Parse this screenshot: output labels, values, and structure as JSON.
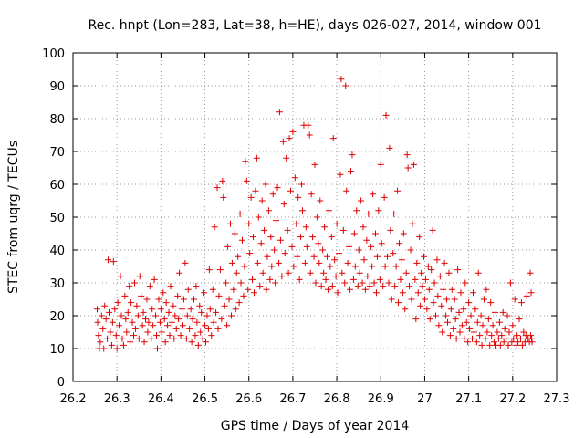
{
  "chart_data": {
    "type": "scatter",
    "title": "Rec. hnpt (Lon=283, Lat=38, h=HE), days 026-027, 2014, window 001",
    "xlabel": "GPS time / Days of year 2014",
    "ylabel": "STEC from uqrg / TECUs",
    "xlim": [
      26.2,
      27.3
    ],
    "ylim": [
      0,
      100
    ],
    "xticks": [
      26.2,
      26.3,
      26.4,
      26.5,
      26.6,
      26.7,
      26.8,
      26.9,
      27.0,
      27.1,
      27.2,
      27.3
    ],
    "xtick_labels": [
      "26.2",
      "26.3",
      "26.4",
      "26.5",
      "26.6",
      "26.7",
      "26.8",
      "26.9",
      "27",
      "27.1",
      "27.2",
      "27.3"
    ],
    "yticks": [
      0,
      10,
      20,
      30,
      40,
      50,
      60,
      70,
      80,
      90,
      100
    ],
    "ytick_labels": [
      "0",
      "10",
      "20",
      "30",
      "40",
      "50",
      "60",
      "70",
      "80",
      "90",
      "100"
    ],
    "grid": true,
    "marker": "+",
    "color": "#e00000",
    "points": [
      [
        26.255,
        22
      ],
      [
        26.256,
        18
      ],
      [
        26.258,
        14
      ],
      [
        26.26,
        10
      ],
      [
        26.262,
        12
      ],
      [
        26.265,
        20
      ],
      [
        26.268,
        16
      ],
      [
        26.27,
        10
      ],
      [
        26.272,
        23
      ],
      [
        26.275,
        19
      ],
      [
        26.278,
        13
      ],
      [
        26.28,
        37
      ],
      [
        26.282,
        21
      ],
      [
        26.285,
        15
      ],
      [
        26.288,
        11
      ],
      [
        26.29,
        18
      ],
      [
        26.292,
        36.5
      ],
      [
        26.295,
        22
      ],
      [
        26.298,
        14
      ],
      [
        26.3,
        10
      ],
      [
        26.302,
        24
      ],
      [
        26.305,
        17
      ],
      [
        26.308,
        32
      ],
      [
        26.31,
        20
      ],
      [
        26.312,
        13
      ],
      [
        26.315,
        11
      ],
      [
        26.318,
        26
      ],
      [
        26.32,
        19
      ],
      [
        26.322,
        15
      ],
      [
        26.325,
        21
      ],
      [
        26.328,
        29
      ],
      [
        26.33,
        12
      ],
      [
        26.332,
        24
      ],
      [
        26.335,
        18
      ],
      [
        26.338,
        14
      ],
      [
        26.34,
        30
      ],
      [
        26.342,
        16
      ],
      [
        26.345,
        23
      ],
      [
        26.348,
        20
      ],
      [
        26.35,
        13
      ],
      [
        26.352,
        32
      ],
      [
        26.355,
        26
      ],
      [
        26.358,
        17
      ],
      [
        26.36,
        21
      ],
      [
        26.362,
        12
      ],
      [
        26.365,
        19
      ],
      [
        26.368,
        25
      ],
      [
        26.37,
        15
      ],
      [
        26.372,
        18
      ],
      [
        26.375,
        29
      ],
      [
        26.378,
        13
      ],
      [
        26.38,
        22
      ],
      [
        26.382,
        17
      ],
      [
        26.385,
        31
      ],
      [
        26.388,
        20
      ],
      [
        26.39,
        14
      ],
      [
        26.392,
        10
      ],
      [
        26.395,
        25
      ],
      [
        26.398,
        18
      ],
      [
        26.4,
        22
      ],
      [
        26.402,
        15
      ],
      [
        26.405,
        27
      ],
      [
        26.408,
        19
      ],
      [
        26.41,
        12
      ],
      [
        26.412,
        24
      ],
      [
        26.415,
        17
      ],
      [
        26.418,
        21
      ],
      [
        26.42,
        14
      ],
      [
        26.422,
        29
      ],
      [
        26.425,
        18
      ],
      [
        26.428,
        23
      ],
      [
        26.43,
        13
      ],
      [
        26.432,
        20
      ],
      [
        26.435,
        16
      ],
      [
        26.438,
        26
      ],
      [
        26.44,
        19
      ],
      [
        26.442,
        33
      ],
      [
        26.445,
        14
      ],
      [
        26.448,
        22
      ],
      [
        26.45,
        17
      ],
      [
        26.452,
        25
      ],
      [
        26.455,
        36
      ],
      [
        26.458,
        13
      ],
      [
        26.46,
        20
      ],
      [
        26.462,
        28
      ],
      [
        26.465,
        16
      ],
      [
        26.468,
        22
      ],
      [
        26.47,
        12
      ],
      [
        26.472,
        19
      ],
      [
        26.475,
        25
      ],
      [
        26.478,
        14
      ],
      [
        26.48,
        29
      ],
      [
        26.482,
        18
      ],
      [
        26.485,
        11
      ],
      [
        26.488,
        23
      ],
      [
        26.49,
        15
      ],
      [
        26.492,
        21
      ],
      [
        26.495,
        13
      ],
      [
        26.498,
        27
      ],
      [
        26.5,
        17
      ],
      [
        26.502,
        12
      ],
      [
        26.505,
        20
      ],
      [
        26.508,
        16
      ],
      [
        26.51,
        34
      ],
      [
        26.512,
        22
      ],
      [
        26.515,
        14
      ],
      [
        26.518,
        28
      ],
      [
        26.52,
        18
      ],
      [
        26.522,
        47
      ],
      [
        26.525,
        21
      ],
      [
        26.528,
        59
      ],
      [
        26.53,
        16
      ],
      [
        26.532,
        26
      ],
      [
        26.535,
        34
      ],
      [
        26.538,
        19
      ],
      [
        26.54,
        61
      ],
      [
        26.542,
        56
      ],
      [
        26.545,
        23
      ],
      [
        26.548,
        30
      ],
      [
        26.55,
        17
      ],
      [
        26.552,
        41
      ],
      [
        26.555,
        25
      ],
      [
        26.558,
        48
      ],
      [
        26.56,
        20
      ],
      [
        26.562,
        36
      ],
      [
        26.565,
        28
      ],
      [
        26.568,
        45
      ],
      [
        26.57,
        22
      ],
      [
        26.572,
        33
      ],
      [
        26.575,
        38
      ],
      [
        26.578,
        24
      ],
      [
        26.58,
        51
      ],
      [
        26.582,
        30
      ],
      [
        26.585,
        43
      ],
      [
        26.588,
        26
      ],
      [
        26.59,
        35
      ],
      [
        26.592,
        67
      ],
      [
        26.595,
        61
      ],
      [
        26.598,
        28
      ],
      [
        26.6,
        48
      ],
      [
        26.602,
        39
      ],
      [
        26.605,
        56
      ],
      [
        26.608,
        31
      ],
      [
        26.61,
        44
      ],
      [
        26.612,
        27
      ],
      [
        26.615,
        58
      ],
      [
        26.618,
        68
      ],
      [
        26.62,
        36
      ],
      [
        26.622,
        50
      ],
      [
        26.625,
        29
      ],
      [
        26.628,
        42
      ],
      [
        26.63,
        55
      ],
      [
        26.632,
        33
      ],
      [
        26.635,
        46
      ],
      [
        26.638,
        60
      ],
      [
        26.64,
        28
      ],
      [
        26.642,
        38
      ],
      [
        26.645,
        52
      ],
      [
        26.648,
        31
      ],
      [
        26.65,
        44
      ],
      [
        26.652,
        35
      ],
      [
        26.655,
        57
      ],
      [
        26.658,
        40
      ],
      [
        26.66,
        30
      ],
      [
        26.662,
        49
      ],
      [
        26.665,
        59
      ],
      [
        26.668,
        36
      ],
      [
        26.67,
        82
      ],
      [
        26.672,
        43
      ],
      [
        26.675,
        32
      ],
      [
        26.678,
        73
      ],
      [
        26.68,
        54
      ],
      [
        26.682,
        39
      ],
      [
        26.685,
        68
      ],
      [
        26.688,
        46
      ],
      [
        26.69,
        33
      ],
      [
        26.692,
        74
      ],
      [
        26.695,
        58
      ],
      [
        26.698,
        41
      ],
      [
        26.7,
        76
      ],
      [
        26.702,
        35
      ],
      [
        26.705,
        62
      ],
      [
        26.708,
        48
      ],
      [
        26.71,
        38
      ],
      [
        26.712,
        56
      ],
      [
        26.715,
        31
      ],
      [
        26.718,
        44
      ],
      [
        26.72,
        60
      ],
      [
        26.722,
        52
      ],
      [
        26.725,
        78
      ],
      [
        26.728,
        36
      ],
      [
        26.73,
        47
      ],
      [
        26.732,
        41
      ],
      [
        26.735,
        78
      ],
      [
        26.738,
        75
      ],
      [
        26.74,
        33
      ],
      [
        26.742,
        57
      ],
      [
        26.745,
        44
      ],
      [
        26.748,
        38
      ],
      [
        26.75,
        66
      ],
      [
        26.752,
        30
      ],
      [
        26.755,
        50
      ],
      [
        26.758,
        42
      ],
      [
        26.76,
        36
      ],
      [
        26.762,
        55
      ],
      [
        26.765,
        29
      ],
      [
        26.768,
        40
      ],
      [
        26.77,
        33
      ],
      [
        26.772,
        47
      ],
      [
        26.775,
        31
      ],
      [
        26.778,
        38
      ],
      [
        26.78,
        28
      ],
      [
        26.782,
        52
      ],
      [
        26.785,
        35
      ],
      [
        26.788,
        44
      ],
      [
        26.79,
        29
      ],
      [
        26.792,
        74
      ],
      [
        26.795,
        37
      ],
      [
        26.798,
        32
      ],
      [
        26.8,
        48
      ],
      [
        26.802,
        27
      ],
      [
        26.805,
        39
      ],
      [
        26.808,
        63
      ],
      [
        26.81,
        92
      ],
      [
        26.812,
        33
      ],
      [
        26.815,
        46
      ],
      [
        26.818,
        30
      ],
      [
        26.82,
        90
      ],
      [
        26.822,
        58
      ],
      [
        26.825,
        36
      ],
      [
        26.828,
        41
      ],
      [
        26.83,
        28
      ],
      [
        26.832,
        64
      ],
      [
        26.835,
        69
      ],
      [
        26.838,
        31
      ],
      [
        26.84,
        45
      ],
      [
        26.842,
        35
      ],
      [
        26.845,
        52
      ],
      [
        26.848,
        29
      ],
      [
        26.85,
        40
      ],
      [
        26.852,
        33
      ],
      [
        26.855,
        55
      ],
      [
        26.858,
        30
      ],
      [
        26.86,
        47
      ],
      [
        26.862,
        37
      ],
      [
        26.865,
        28
      ],
      [
        26.868,
        43
      ],
      [
        26.87,
        32
      ],
      [
        26.872,
        51
      ],
      [
        26.875,
        29
      ],
      [
        26.878,
        41
      ],
      [
        26.88,
        35
      ],
      [
        26.882,
        57
      ],
      [
        26.885,
        30
      ],
      [
        26.888,
        45
      ],
      [
        26.89,
        27
      ],
      [
        26.892,
        38
      ],
      [
        26.895,
        52
      ],
      [
        26.898,
        31
      ],
      [
        26.9,
        66
      ],
      [
        26.902,
        42
      ],
      [
        26.905,
        29
      ],
      [
        26.908,
        56
      ],
      [
        26.91,
        35
      ],
      [
        26.912,
        81
      ],
      [
        26.915,
        38
      ],
      [
        26.918,
        30
      ],
      [
        26.92,
        71
      ],
      [
        26.922,
        46
      ],
      [
        26.925,
        25
      ],
      [
        26.928,
        39
      ],
      [
        26.93,
        51
      ],
      [
        26.932,
        29
      ],
      [
        26.935,
        35
      ],
      [
        26.938,
        58
      ],
      [
        26.94,
        24
      ],
      [
        26.942,
        42
      ],
      [
        26.945,
        31
      ],
      [
        26.948,
        37
      ],
      [
        26.95,
        27
      ],
      [
        26.952,
        45
      ],
      [
        26.955,
        22
      ],
      [
        26.958,
        33
      ],
      [
        26.96,
        69
      ],
      [
        26.962,
        65
      ],
      [
        26.965,
        29
      ],
      [
        26.968,
        40
      ],
      [
        26.97,
        25
      ],
      [
        26.972,
        48
      ],
      [
        26.975,
        66
      ],
      [
        26.978,
        31
      ],
      [
        26.98,
        19
      ],
      [
        26.982,
        36
      ],
      [
        26.985,
        27
      ],
      [
        26.988,
        44
      ],
      [
        26.99,
        23
      ],
      [
        26.992,
        33
      ],
      [
        26.995,
        29
      ],
      [
        26.998,
        38
      ],
      [
        27.0,
        25
      ],
      [
        27.002,
        31
      ],
      [
        27.005,
        22
      ],
      [
        27.008,
        35
      ],
      [
        27.01,
        28
      ],
      [
        27.012,
        19
      ],
      [
        27.015,
        34
      ],
      [
        27.018,
        46
      ],
      [
        27.02,
        24
      ],
      [
        27.022,
        30
      ],
      [
        27.025,
        20
      ],
      [
        27.028,
        37
      ],
      [
        27.03,
        26
      ],
      [
        27.032,
        17
      ],
      [
        27.035,
        32
      ],
      [
        27.038,
        23
      ],
      [
        27.04,
        15
      ],
      [
        27.042,
        28
      ],
      [
        27.045,
        36
      ],
      [
        27.048,
        20
      ],
      [
        27.05,
        25
      ],
      [
        27.052,
        18
      ],
      [
        27.055,
        33
      ],
      [
        27.058,
        14
      ],
      [
        27.06,
        22
      ],
      [
        27.062,
        28
      ],
      [
        27.065,
        16
      ],
      [
        27.068,
        25
      ],
      [
        27.07,
        19
      ],
      [
        27.072,
        13
      ],
      [
        27.075,
        34
      ],
      [
        27.078,
        21
      ],
      [
        27.08,
        15
      ],
      [
        27.082,
        27
      ],
      [
        27.085,
        17
      ],
      [
        27.088,
        22
      ],
      [
        27.09,
        13
      ],
      [
        27.092,
        30
      ],
      [
        27.095,
        18
      ],
      [
        27.098,
        12
      ],
      [
        27.1,
        24
      ],
      [
        27.102,
        16
      ],
      [
        27.105,
        20
      ],
      [
        27.108,
        13
      ],
      [
        27.11,
        27
      ],
      [
        27.112,
        15
      ],
      [
        27.115,
        22
      ],
      [
        27.118,
        12
      ],
      [
        27.12,
        18
      ],
      [
        27.122,
        33
      ],
      [
        27.125,
        14
      ],
      [
        27.128,
        20
      ],
      [
        27.13,
        11
      ],
      [
        27.132,
        17
      ],
      [
        27.135,
        25
      ],
      [
        27.138,
        13
      ],
      [
        27.14,
        28
      ],
      [
        27.142,
        15
      ],
      [
        27.145,
        19
      ],
      [
        27.148,
        11
      ],
      [
        27.15,
        24
      ],
      [
        27.152,
        14
      ],
      [
        27.155,
        17
      ],
      [
        27.158,
        12
      ],
      [
        27.16,
        21
      ],
      [
        27.162,
        11
      ],
      [
        27.165,
        15
      ],
      [
        27.168,
        13
      ],
      [
        27.17,
        18
      ],
      [
        27.172,
        11
      ],
      [
        27.175,
        14
      ],
      [
        27.178,
        21
      ],
      [
        27.18,
        12
      ],
      [
        27.182,
        16
      ],
      [
        27.185,
        13
      ],
      [
        27.188,
        20
      ],
      [
        27.19,
        11
      ],
      [
        27.192,
        15
      ],
      [
        27.195,
        30
      ],
      [
        27.198,
        12
      ],
      [
        27.2,
        17
      ],
      [
        27.202,
        13
      ],
      [
        27.205,
        25
      ],
      [
        27.208,
        11
      ],
      [
        27.21,
        14
      ],
      [
        27.212,
        12
      ],
      [
        27.215,
        19
      ],
      [
        27.218,
        13
      ],
      [
        27.22,
        24
      ],
      [
        27.222,
        11
      ],
      [
        27.225,
        15
      ],
      [
        27.228,
        12
      ],
      [
        27.23,
        14
      ],
      [
        27.232,
        26
      ],
      [
        27.235,
        13
      ],
      [
        27.238,
        12
      ],
      [
        27.24,
        33
      ],
      [
        27.241,
        14
      ],
      [
        27.242,
        27
      ],
      [
        27.243,
        13
      ],
      [
        27.244,
        12
      ]
    ]
  }
}
